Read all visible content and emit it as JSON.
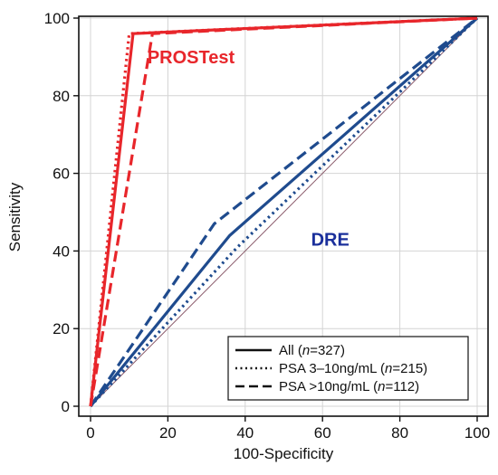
{
  "chart_data": {
    "type": "line",
    "xlabel": "100-Specificity",
    "ylabel": "Sensitivity",
    "xlim": [
      0,
      100
    ],
    "ylim": [
      0,
      100
    ],
    "x_ticks": [
      0,
      20,
      40,
      60,
      80,
      100
    ],
    "y_ticks": [
      0,
      20,
      40,
      60,
      80,
      100
    ],
    "grid": true,
    "reference_line": [
      [
        0,
        0
      ],
      [
        100,
        100
      ]
    ],
    "annotations": [
      {
        "id": "prostest",
        "text": "PROSTest",
        "color": "#e8262b",
        "x": 26,
        "y": 90
      },
      {
        "id": "dre",
        "text": "DRE",
        "color": "#1a2f9b",
        "x": 62,
        "y": 43
      }
    ],
    "series": [
      {
        "test": "PROSTest",
        "style": "solid",
        "color": "#e8262b",
        "points": [
          [
            0,
            0
          ],
          [
            11,
            96
          ],
          [
            100,
            100
          ]
        ]
      },
      {
        "test": "PROSTest",
        "style": "dotted",
        "color": "#e8262b",
        "points": [
          [
            0,
            0
          ],
          [
            10,
            96
          ],
          [
            100,
            100
          ]
        ]
      },
      {
        "test": "PROSTest",
        "style": "dashed",
        "color": "#e8262b",
        "points": [
          [
            0,
            0
          ],
          [
            16,
            96
          ],
          [
            100,
            100
          ]
        ]
      },
      {
        "test": "DRE",
        "style": "solid",
        "color": "#1f4b8e",
        "points": [
          [
            0,
            0
          ],
          [
            36,
            44
          ],
          [
            100,
            100
          ]
        ]
      },
      {
        "test": "DRE",
        "style": "dotted",
        "color": "#1f4b8e",
        "points": [
          [
            0,
            0
          ],
          [
            38,
            41
          ],
          [
            100,
            100
          ]
        ]
      },
      {
        "test": "DRE",
        "style": "dashed",
        "color": "#1f4b8e",
        "points": [
          [
            0,
            0
          ],
          [
            32,
            47
          ],
          [
            100,
            100
          ]
        ]
      }
    ],
    "legend": {
      "position": "bottom-right",
      "entries": [
        {
          "style": "solid",
          "label": "All (",
          "n_label": "n",
          "n_value": "=327)"
        },
        {
          "style": "dotted",
          "label": "PSA 3–10ng/mL (",
          "n_label": "n",
          "n_value": "=215)"
        },
        {
          "style": "dashed",
          "label": "PSA >10ng/mL (",
          "n_label": "n",
          "n_value": "=112)"
        }
      ]
    }
  }
}
